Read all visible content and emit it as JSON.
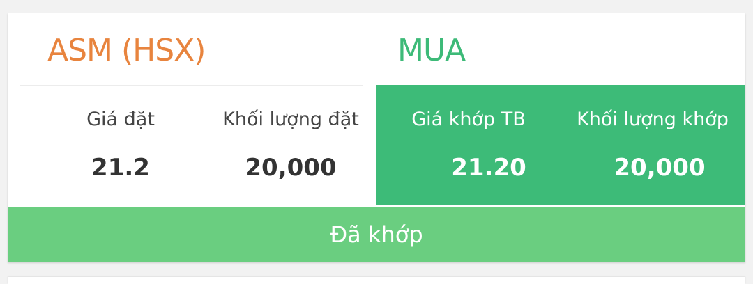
{
  "order": {
    "symbol": "ASM (HSX)",
    "side": "MUA",
    "order_price_label": "Giá đặt",
    "order_price": "21.2",
    "order_volume_label": "Khối lượng đặt",
    "order_volume": "20,000",
    "matched_price_label": "Giá khớp TB",
    "matched_price": "21.20",
    "matched_volume_label": "Khối lượng khớp",
    "matched_volume": "20,000",
    "status": "Đã khớp"
  },
  "colors": {
    "symbol": "#e8843e",
    "side_buy": "#3dba78",
    "matched_panel": "#3dbb78",
    "status_bar": "#6ace80"
  }
}
